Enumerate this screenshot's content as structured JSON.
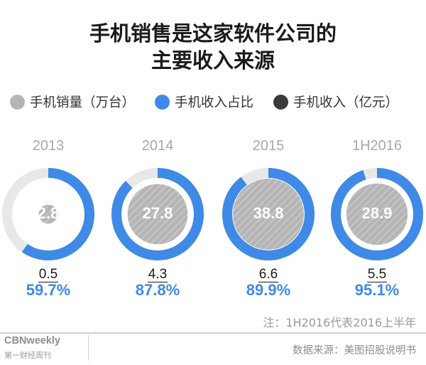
{
  "title_line1": "手机销售是这家软件公司的",
  "title_line2": "主要收入来源",
  "legend": [
    {
      "label": "手机销量（万台）",
      "color": "#b5b5b5"
    },
    {
      "label": "手机收入占比",
      "color": "#3e8ae6"
    },
    {
      "label": "手机收入（亿元）",
      "color": "#3b3b3b"
    }
  ],
  "chart_data": {
    "type": "donut",
    "categories": [
      "2013",
      "2014",
      "2015",
      "1H2016"
    ],
    "series": [
      {
        "name": "手机销量（万台）",
        "values": [
          2.8,
          27.8,
          38.8,
          28.9
        ],
        "labels": [
          "2.8",
          "27.8",
          "38.8",
          "28.9"
        ]
      },
      {
        "name": "手机收入占比",
        "values": [
          59.7,
          87.8,
          89.9,
          95.1
        ],
        "labels": [
          "59.7%",
          "87.8%",
          "89.9%",
          "95.1%"
        ]
      },
      {
        "name": "手机收入（亿元）",
        "values": [
          0.5,
          4.3,
          6.6,
          5.5
        ],
        "labels": [
          "0.5",
          "4.3",
          "6.6",
          "5.5"
        ]
      }
    ]
  },
  "note": "注：1H2016代表2016上半年",
  "brand_en": "CBNweekly",
  "brand_cn": "第一财经周刊",
  "source": "数据来源：美图招股说明书",
  "colors": {
    "ring_track": "#e8e8e8",
    "ring_fill": "#3e8ae6",
    "sales_fill": "#b5b5b5",
    "sales_hatch": "#d3d3d3"
  }
}
